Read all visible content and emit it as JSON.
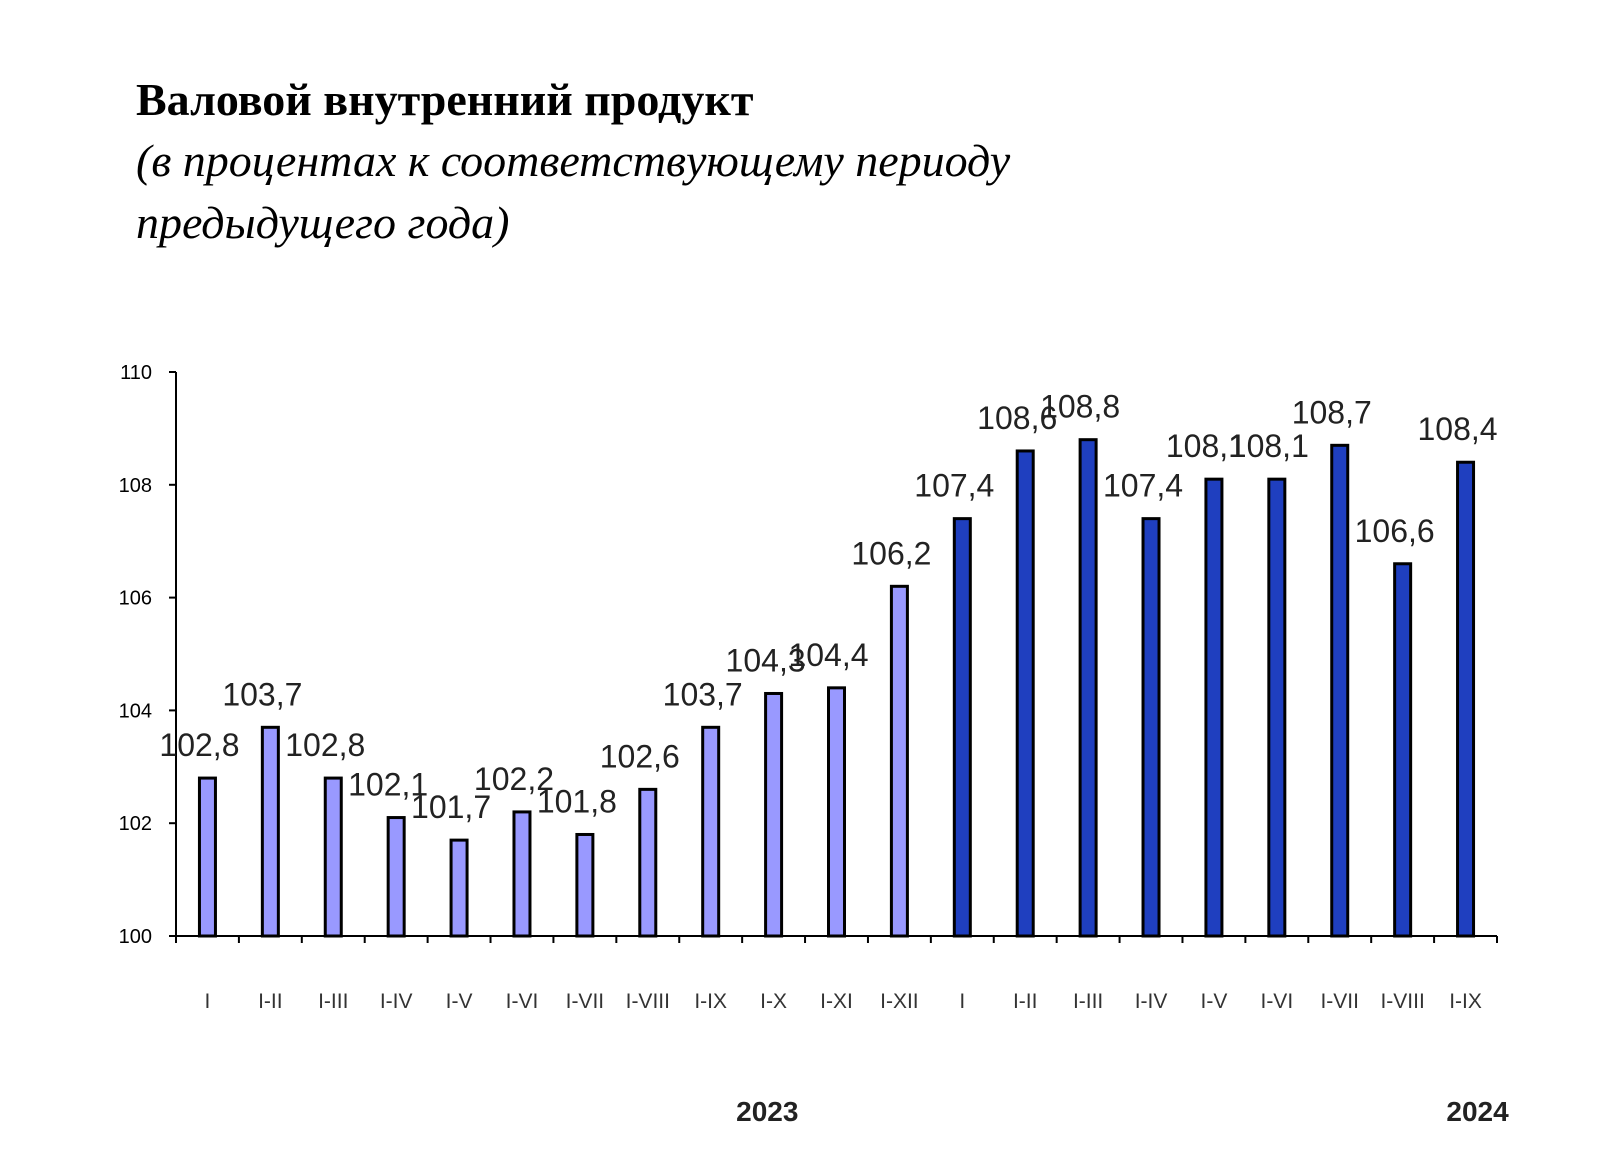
{
  "chart_data": {
    "type": "bar",
    "title": "Валовой внутренний продукт",
    "subtitle": "(в процентах к соответствующему периоду предыдущего года)",
    "categories": [
      "I",
      "I-II",
      "I-III",
      "I-IV",
      "I-V",
      "I-VI",
      "I-VII",
      "I-VIII",
      "I-IX",
      "I-X",
      "I-XI",
      "I-XII",
      "I",
      "I-II",
      "I-III",
      "I-IV",
      "I-V",
      "I-VI",
      "I-VII",
      "I-VIII",
      "I-IX"
    ],
    "values": [
      102.8,
      103.7,
      102.8,
      102.1,
      101.7,
      102.2,
      101.8,
      102.6,
      103.7,
      104.3,
      104.4,
      106.2,
      107.4,
      108.6,
      108.8,
      107.4,
      108.1,
      108.1,
      108.7,
      106.6,
      108.4
    ],
    "value_labels": [
      "102,8",
      "103,7",
      "102,8",
      "102,1",
      "101,7",
      "102,2",
      "101,8",
      "102,6",
      "103,7",
      "104,3",
      "104,4",
      "106,2",
      "107,4",
      "108,6",
      "108,8",
      "107,4",
      "108,1",
      "108,1",
      "108,7",
      "106,6",
      "108,4"
    ],
    "groups": [
      {
        "name": "2023",
        "count": 12,
        "color": "#9999ff"
      },
      {
        "name": "2024",
        "count": 9,
        "color": "#1f3fbf"
      }
    ],
    "yticks": [
      100,
      102,
      104,
      106,
      108,
      110
    ],
    "ylim": [
      100,
      110
    ],
    "xlabel": "",
    "ylabel": "",
    "legend": "none",
    "grid": false
  }
}
